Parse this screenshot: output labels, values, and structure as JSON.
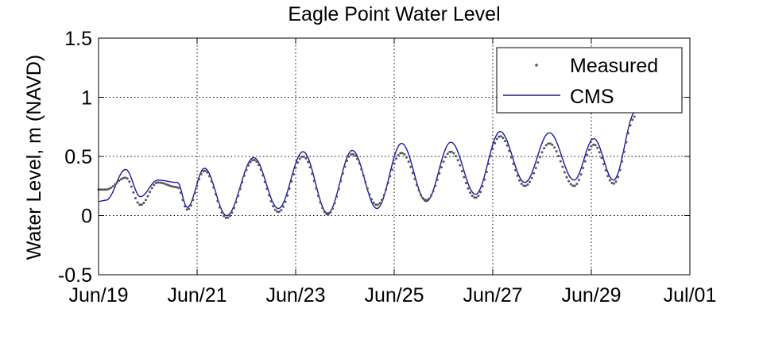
{
  "chart_data": {
    "type": "line",
    "title": "Eagle Point Water Level",
    "xlabel": "",
    "ylabel": "Water Level, m (NAVD)",
    "x_tick_labels": [
      "Jun/19",
      "Jun/21",
      "Jun/23",
      "Jun/25",
      "Jun/27",
      "Jun/29",
      "Jul/01"
    ],
    "x_range_days": [
      0,
      12
    ],
    "x_range_note_dates": [
      "Jun/19",
      "Jul/01"
    ],
    "y_tick_labels": [
      "-0.5",
      "0",
      "0.5",
      "1",
      "1.5"
    ],
    "y_ticks": [
      -0.5,
      0,
      0.5,
      1,
      1.5
    ],
    "ylim": [
      -0.5,
      1.5
    ],
    "grid": true,
    "legend_position": "top-right",
    "colors": {
      "measured": "#555555",
      "cms": "#1a1a9e"
    },
    "cycle": {
      "times": [
        0.0,
        0.15,
        0.55,
        0.85,
        1.2,
        1.6,
        1.8,
        2.15,
        2.6,
        3.15,
        3.65,
        4.15,
        4.65,
        5.15,
        5.65,
        6.15,
        6.65,
        7.15,
        7.65,
        8.15,
        8.65,
        9.15,
        9.65,
        10.05,
        10.45,
        10.9
      ],
      "cms_levels": [
        0.12,
        0.13,
        0.39,
        0.16,
        0.3,
        0.28,
        0.07,
        0.4,
        0.0,
        0.49,
        0.06,
        0.54,
        0.02,
        0.55,
        0.06,
        0.61,
        0.12,
        0.62,
        0.18,
        0.71,
        0.28,
        0.7,
        0.3,
        0.65,
        0.3,
        0.88
      ],
      "measured_levels": [
        0.22,
        0.22,
        0.32,
        0.09,
        0.28,
        0.24,
        0.05,
        0.38,
        -0.02,
        0.47,
        0.03,
        0.5,
        0.01,
        0.52,
        0.09,
        0.53,
        0.13,
        0.54,
        0.15,
        0.67,
        0.25,
        0.61,
        0.25,
        0.6,
        0.27,
        0.84
      ]
    },
    "series": [
      {
        "name": "Measured",
        "style": "dots"
      },
      {
        "name": "CMS",
        "style": "line"
      }
    ]
  }
}
